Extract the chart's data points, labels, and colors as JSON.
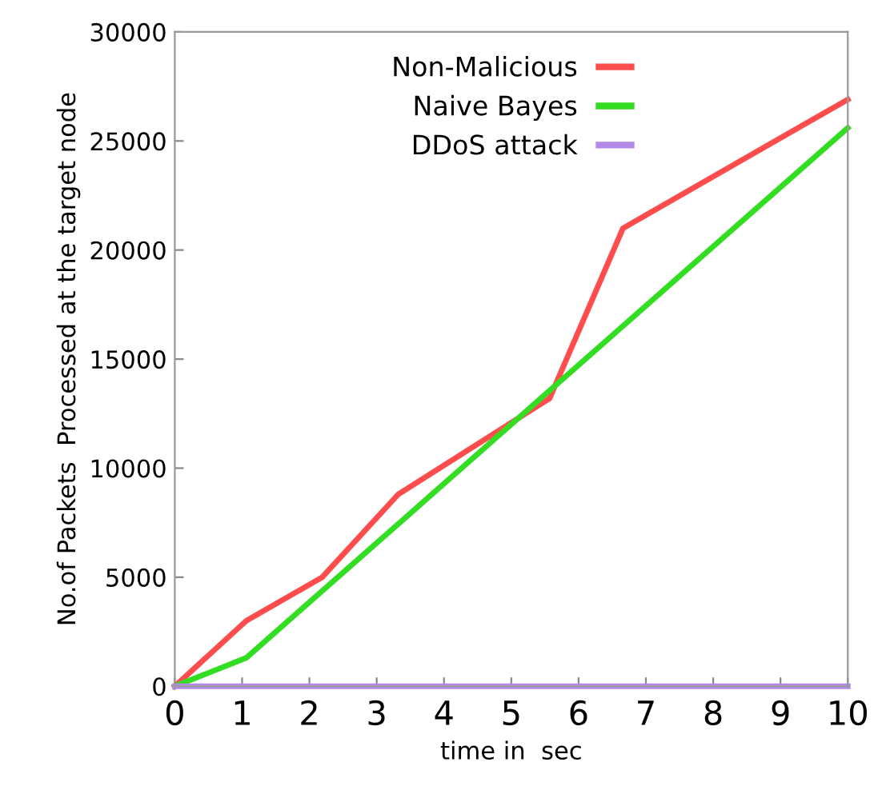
{
  "chart_data": {
    "type": "line",
    "xlabel": "time in  sec",
    "ylabel": "No.of Packets  Processed at the target node",
    "xlim": [
      0,
      10
    ],
    "ylim": [
      0,
      30000
    ],
    "xticks": [
      0,
      1,
      2,
      3,
      4,
      5,
      6,
      7,
      8,
      9,
      10
    ],
    "yticks": [
      0,
      5000,
      10000,
      15000,
      20000,
      25000,
      30000
    ],
    "grid": false,
    "legend": "top",
    "marker": "none",
    "line_style": "solid",
    "series": [
      {
        "name": "Non-Malicious",
        "color": "#ff4d4d",
        "x": [
          0,
          1.06,
          2.19,
          3.32,
          5.57,
          6.66,
          10
        ],
        "values": [
          0,
          3000,
          5000,
          8800,
          13200,
          21000,
          26900
        ]
      },
      {
        "name": "Naive Bayes",
        "color": "#33dd22",
        "x": [
          0,
          1.06,
          10
        ],
        "values": [
          0,
          1300,
          25600
        ]
      },
      {
        "name": "DDoS attack",
        "color": "#b388e8",
        "x": [
          0,
          10
        ],
        "values": [
          0,
          0
        ]
      }
    ]
  }
}
